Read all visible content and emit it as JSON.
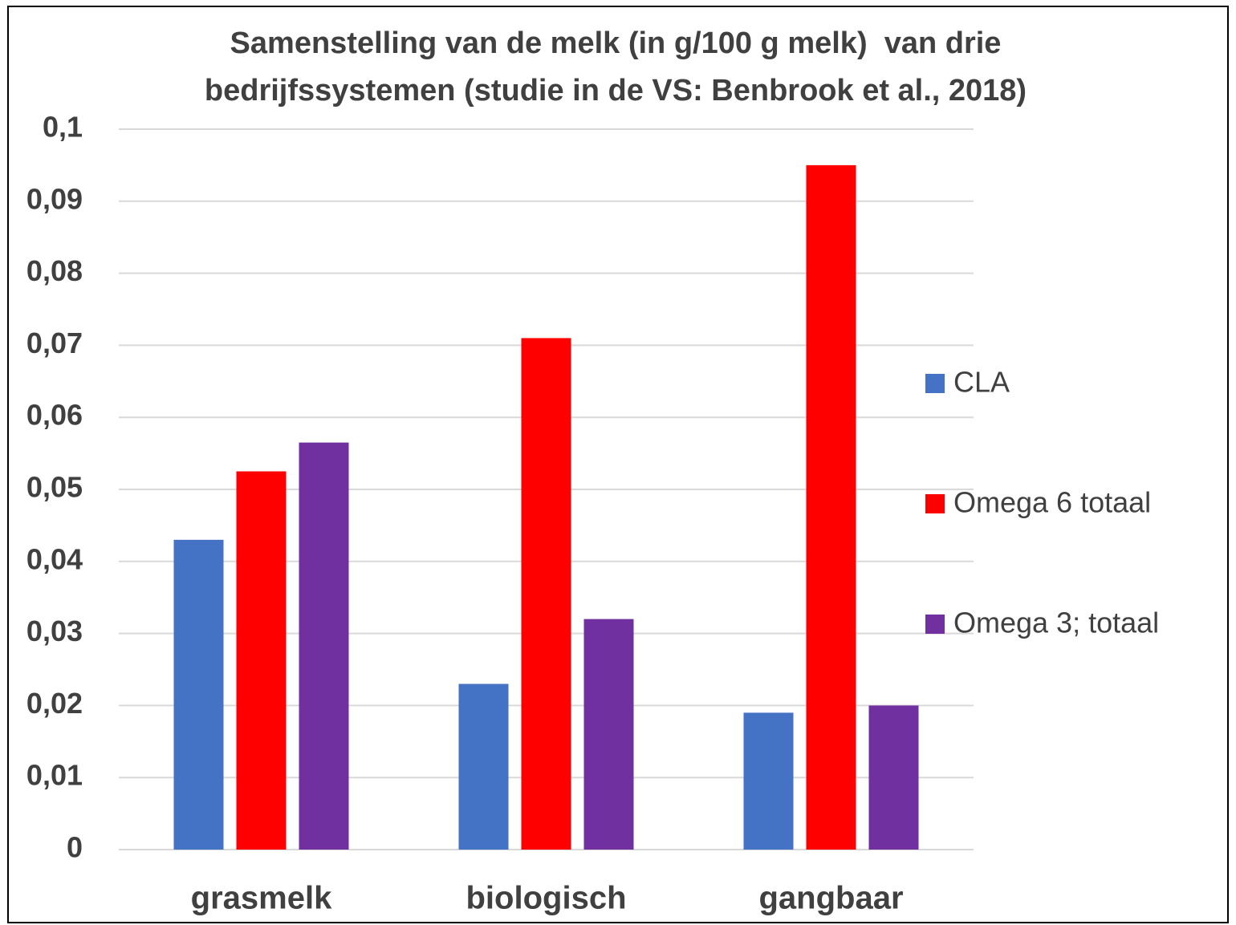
{
  "chart_data": {
    "type": "bar",
    "title": [
      "Samenstelling van de melk (in g/100 g melk)  van drie",
      "bedrijfssystemen (studie in de VS: Benbrook et al., 2018)"
    ],
    "categories": [
      "grasmelk",
      "biologisch",
      "gangbaar"
    ],
    "series": [
      {
        "name": "CLA",
        "color": "#4472c4",
        "values": [
          0.043,
          0.023,
          0.019
        ]
      },
      {
        "name": "Omega 6 totaal",
        "color": "#ff0000",
        "values": [
          0.0525,
          0.071,
          0.095
        ]
      },
      {
        "name": "Omega 3; totaal",
        "color": "#7030a0",
        "values": [
          0.0565,
          0.032,
          0.02
        ]
      }
    ],
    "ylim": [
      0,
      0.1
    ],
    "yticks": [
      0,
      {
        "value": 0.01,
        "label": "0,01"
      },
      {
        "value": 0.02,
        "label": "0,02"
      },
      {
        "value": 0.03,
        "label": "0,03"
      },
      {
        "value": 0.04,
        "label": "0,04"
      },
      {
        "value": 0.05,
        "label": "0,05"
      },
      {
        "value": 0.06,
        "label": "0,06"
      },
      {
        "value": 0.07,
        "label": "0,07"
      },
      {
        "value": 0.08,
        "label": "0,08"
      },
      {
        "value": 0.09,
        "label": "0,09"
      },
      {
        "value": 0.1,
        "label": "0,1"
      }
    ],
    "grid": true,
    "legend": "right"
  }
}
